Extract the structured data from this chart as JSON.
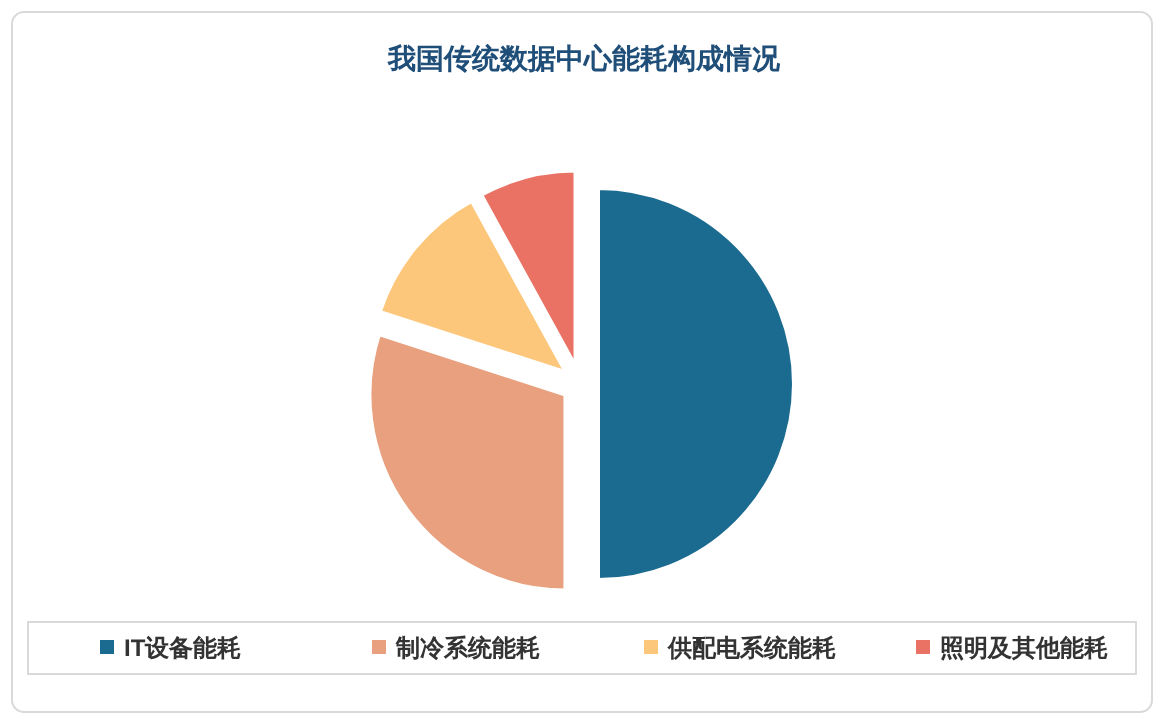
{
  "chart_data": {
    "type": "pie",
    "title": "我国传统数据中心能耗构成情况",
    "categories": [
      "IT设备能耗",
      "制冷系统能耗",
      "供配电系统能耗",
      "照明及其他能耗"
    ],
    "values": [
      50,
      30,
      12,
      8
    ],
    "colors": [
      "#1b6a8f",
      "#e8a07f",
      "#fcc77a",
      "#e97265"
    ],
    "legend": "bottom"
  }
}
